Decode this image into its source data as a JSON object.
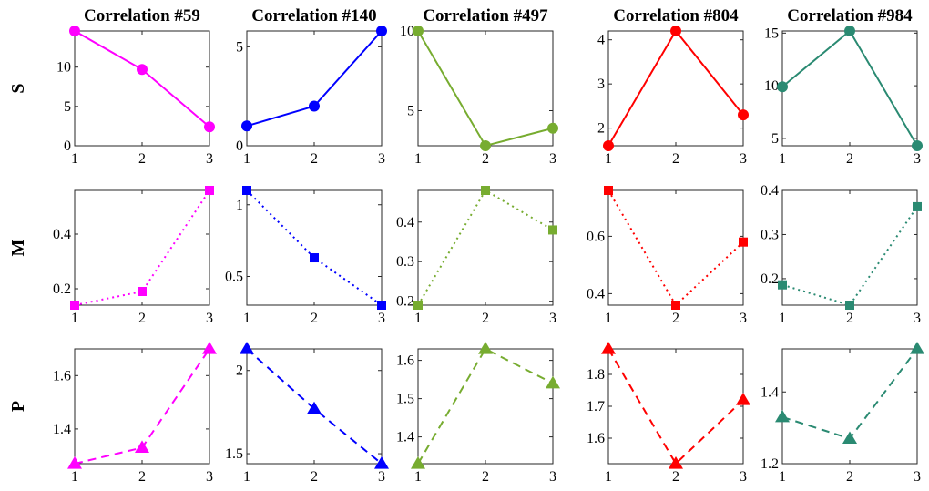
{
  "chart_data": {
    "type": "line",
    "layout": "grid 3 rows x 5 columns",
    "x": [
      1,
      2,
      3
    ],
    "x_ticks": [
      "1",
      "2",
      "3"
    ],
    "row_labels": [
      "S",
      "M",
      "P"
    ],
    "columns": [
      {
        "title": "Correlation #59",
        "color": "#ff00ff",
        "S": {
          "values": [
            14.6,
            9.7,
            2.4
          ],
          "ylim": [
            0,
            14.6
          ],
          "yticks": [
            "0",
            "5",
            "10"
          ],
          "ytick_values": [
            0,
            5,
            10
          ]
        },
        "M": {
          "values": [
            0.14,
            0.19,
            0.56
          ],
          "ylim": [
            0.14,
            0.56
          ],
          "yticks": [
            "0.2",
            "0.4"
          ],
          "ytick_values": [
            0.2,
            0.4
          ]
        },
        "P": {
          "values": [
            1.27,
            1.33,
            1.7
          ],
          "ylim": [
            1.27,
            1.7
          ],
          "yticks": [
            "1.4",
            "1.6"
          ],
          "ytick_values": [
            1.4,
            1.6
          ]
        }
      },
      {
        "title": "Correlation #140",
        "color": "#0000ff",
        "S": {
          "values": [
            1.0,
            2.0,
            5.8
          ],
          "ylim": [
            0,
            5.8
          ],
          "yticks": [
            "0",
            "5"
          ],
          "ytick_values": [
            0,
            5
          ]
        },
        "M": {
          "values": [
            1.1,
            0.63,
            0.3
          ],
          "ylim": [
            0.3,
            1.1
          ],
          "yticks": [
            "0.5",
            "1"
          ],
          "ytick_values": [
            0.5,
            1.0
          ]
        },
        "P": {
          "values": [
            2.13,
            1.77,
            1.44
          ],
          "ylim": [
            1.44,
            2.13
          ],
          "yticks": [
            "1.5",
            "2"
          ],
          "ytick_values": [
            1.5,
            2.0
          ]
        }
      },
      {
        "title": "Correlation #497",
        "color": "#77ac30",
        "S": {
          "values": [
            10.0,
            2.8,
            3.9
          ],
          "ylim": [
            2.8,
            10.0
          ],
          "yticks": [
            "5",
            "10"
          ],
          "ytick_values": [
            5,
            10
          ]
        },
        "M": {
          "values": [
            0.19,
            0.48,
            0.38
          ],
          "ylim": [
            0.19,
            0.48
          ],
          "yticks": [
            "0.2",
            "0.3",
            "0.4"
          ],
          "ytick_values": [
            0.2,
            0.3,
            0.4
          ]
        },
        "P": {
          "values": [
            1.33,
            1.63,
            1.54
          ],
          "ylim": [
            1.33,
            1.63
          ],
          "yticks": [
            "1.4",
            "1.5",
            "1.6"
          ],
          "ytick_values": [
            1.4,
            1.5,
            1.6
          ]
        }
      },
      {
        "title": "Correlation #804",
        "color": "#ff0000",
        "S": {
          "values": [
            1.6,
            4.2,
            2.3
          ],
          "ylim": [
            1.6,
            4.2
          ],
          "yticks": [
            "2",
            "3",
            "4"
          ],
          "ytick_values": [
            2,
            3,
            4
          ]
        },
        "M": {
          "values": [
            0.76,
            0.36,
            0.58
          ],
          "ylim": [
            0.36,
            0.76
          ],
          "yticks": [
            "0.4",
            "0.6"
          ],
          "ytick_values": [
            0.4,
            0.6
          ]
        },
        "P": {
          "values": [
            1.88,
            1.52,
            1.72
          ],
          "ylim": [
            1.52,
            1.88
          ],
          "yticks": [
            "1.6",
            "1.7",
            "1.8"
          ],
          "ytick_values": [
            1.6,
            1.7,
            1.8
          ]
        }
      },
      {
        "title": "Correlation #984",
        "color": "#2a8a72",
        "S": {
          "values": [
            9.9,
            15.2,
            4.3
          ],
          "ylim": [
            4.3,
            15.2
          ],
          "yticks": [
            "5",
            "10",
            "15"
          ],
          "ytick_values": [
            5,
            10,
            15
          ]
        },
        "M": {
          "values": [
            0.186,
            0.14,
            0.363
          ],
          "ylim": [
            0.14,
            0.4
          ],
          "yticks": [
            "0.2",
            "0.3",
            "0.4"
          ],
          "ytick_values": [
            0.2,
            0.3,
            0.4
          ]
        },
        "P": {
          "values": [
            1.33,
            1.27,
            1.52
          ],
          "ylim": [
            1.2,
            1.52
          ],
          "yticks": [
            "1.2",
            "1.4"
          ],
          "ytick_values": [
            1.2,
            1.4
          ]
        }
      }
    ],
    "row_styles": {
      "S": {
        "line": "solid",
        "marker": "circle"
      },
      "M": {
        "line": "dotted",
        "marker": "square"
      },
      "P": {
        "line": "dashed",
        "marker": "triangle"
      }
    },
    "grid": false,
    "legend": "none"
  }
}
